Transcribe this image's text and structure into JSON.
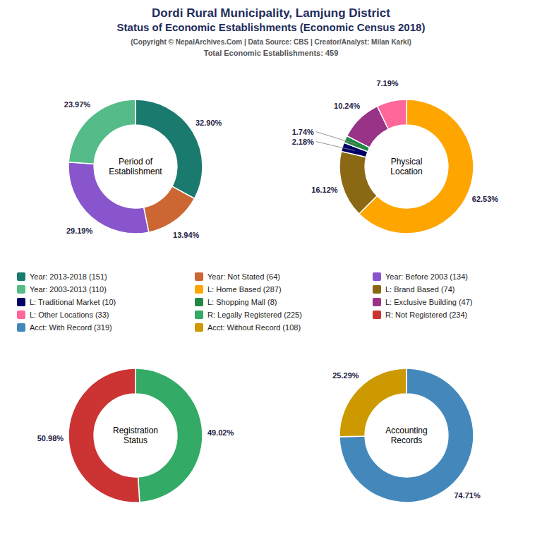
{
  "title": "Dordi Rural Municipality, Lamjung District\nStatus of Economic Establishments (Economic Census 2018)",
  "subtitle": "(Copyright © NepalArchives.Com | Data Source: CBS | Creator/Analyst: Milan Karki)\nTotal Economic Establishments: 459",
  "chart_data": [
    {
      "type": "pie",
      "title": "Period of\nEstablishment",
      "categories": [
        "Year: 2013-2018 (151)",
        "Year: Not Stated (64)",
        "Year: Before 2003 (134)",
        "Year: 2003-2013 (110)"
      ],
      "values": [
        32.9,
        13.94,
        29.19,
        23.97
      ],
      "value_labels": [
        "32.90%",
        "13.94%",
        "29.19%",
        "23.97%"
      ],
      "colors": [
        "#1a7a6e",
        "#cc6633",
        "#8855cc",
        "#55bb88"
      ],
      "data_labels": true,
      "legend": "center"
    },
    {
      "type": "pie",
      "title": "Physical\nLocation",
      "categories": [
        "L: Home Based (287)",
        "L: Brand Based (74)",
        "L: Traditional Market (10)",
        "L: Shopping Mall (8)",
        "L: Exclusive Building (47)",
        "L: Other Locations (33)"
      ],
      "values": [
        62.53,
        16.12,
        2.18,
        1.74,
        10.24,
        7.19
      ],
      "value_labels": [
        "62.53%",
        "16.12%",
        "2.18%",
        "1.74%",
        "10.24%",
        "7.19%"
      ],
      "colors": [
        "#FFA500",
        "#8B6914",
        "#000066",
        "#228844",
        "#993388",
        "#FF6699"
      ],
      "data_labels": true,
      "legend": "center"
    },
    {
      "type": "pie",
      "title": "Registration\nStatus",
      "categories": [
        "R: Legally Registered (225)",
        "R: Not Registered (234)"
      ],
      "values": [
        49.02,
        50.98
      ],
      "value_labels": [
        "49.02%",
        "50.98%"
      ],
      "colors": [
        "#33AA66",
        "#CC3333"
      ],
      "data_labels": true,
      "legend": "center"
    },
    {
      "type": "pie",
      "title": "Accounting\nRecords",
      "categories": [
        "Acct: With Record (319)",
        "Acct: Without Record (108)"
      ],
      "values": [
        74.71,
        25.29
      ],
      "value_labels": [
        "74.71%",
        "25.29%"
      ],
      "colors": [
        "#4488BB",
        "#CC9900"
      ],
      "data_labels": true,
      "legend": "center"
    }
  ]
}
